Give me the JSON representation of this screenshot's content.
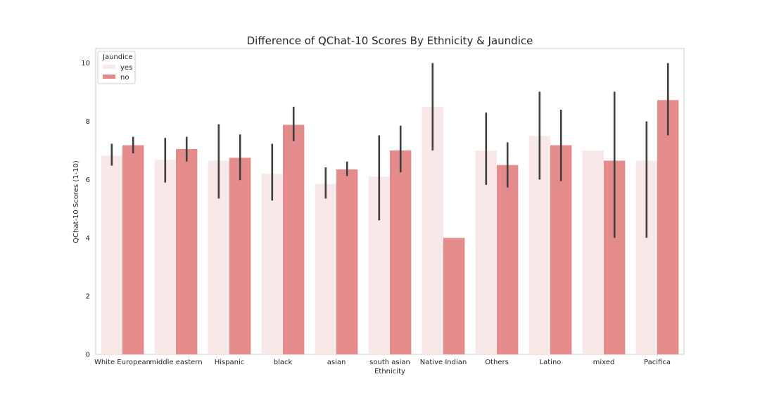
{
  "chart_data": {
    "type": "bar",
    "title": "Difference of QChat-10 Scores By Ethnicity & Jaundice",
    "xlabel": "Ethnicity",
    "ylabel": "QChat-10 Scores (1-10)",
    "ylim": [
      0,
      10.5
    ],
    "yticks": [
      "0",
      "2",
      "4",
      "6",
      "8",
      "10"
    ],
    "grid": false,
    "legend": {
      "title": "Jaundice",
      "placement": "top-left"
    },
    "categories": [
      "White European",
      "middle eastern",
      "Hispanic",
      "black",
      "asian",
      "south asian",
      "Native Indian",
      "Others",
      "Latino",
      "mixed",
      "Pacifica"
    ],
    "series": [
      {
        "name": "yes",
        "color": "#f8e9e8",
        "values": [
          6.82,
          6.68,
          6.65,
          6.2,
          5.85,
          6.1,
          8.5,
          7.0,
          7.5,
          7.0,
          6.65
        ],
        "ci_low": [
          6.48,
          5.9,
          5.35,
          5.28,
          5.35,
          4.6,
          7.0,
          5.82,
          6.0,
          7.0,
          4.0
        ],
        "ci_high": [
          7.23,
          7.43,
          7.9,
          7.23,
          6.42,
          7.52,
          10.0,
          8.3,
          9.02,
          7.0,
          8.0
        ]
      },
      {
        "name": "no",
        "color": "#e38c8b",
        "values": [
          7.18,
          7.05,
          6.75,
          7.88,
          6.35,
          7.0,
          4.0,
          6.5,
          7.18,
          6.65,
          8.73
        ],
        "ci_low": [
          6.9,
          6.62,
          5.98,
          7.32,
          6.12,
          6.25,
          4.0,
          5.73,
          5.95,
          4.0,
          7.52
        ],
        "ci_high": [
          7.47,
          7.47,
          7.55,
          8.5,
          6.62,
          7.85,
          4.0,
          7.28,
          8.4,
          9.02,
          10.0
        ]
      }
    ]
  }
}
